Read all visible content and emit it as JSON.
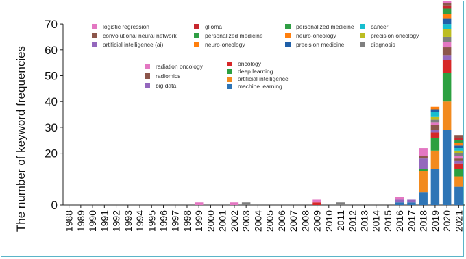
{
  "chart_data": {
    "type": "bar",
    "stacked": true,
    "title": "",
    "xlabel": "",
    "ylabel": "The number of keyword frequencies",
    "y_ticks": [
      0,
      20,
      30,
      40,
      50,
      60,
      70
    ],
    "categories": [
      "1988",
      "1989",
      "1990",
      "1991",
      "1992",
      "1993",
      "1994",
      "1995",
      "1996",
      "1997",
      "1998",
      "1999",
      "2000",
      "2001",
      "2002",
      "2003",
      "2004",
      "2005",
      "2006",
      "2007",
      "2008",
      "2009",
      "2010",
      "2011",
      "2012",
      "2013",
      "2014",
      "2015",
      "2016",
      "2017",
      "2018",
      "2019",
      "2020",
      "2021"
    ],
    "legend_groups": [
      [
        "logistic regression",
        "convolutional neural network",
        "artificial intelligence (ai)"
      ],
      [
        "glioma",
        "personalized medicine",
        "neuro-oncology"
      ],
      [
        "personalized medicine",
        "neuro-oncology",
        "precision medicine"
      ],
      [
        "cancer",
        "precision oncology",
        "diagnosis"
      ],
      [
        "radiation oncology",
        "radiomics",
        "big data"
      ],
      [
        "oncology",
        "deep learning",
        "artificial intelligence",
        "machine learning"
      ]
    ],
    "series": [
      {
        "name": "machine learning",
        "color": "#2e75b6",
        "values": [
          0,
          0,
          0,
          0,
          0,
          0,
          0,
          0,
          0,
          0,
          0,
          0,
          0,
          0,
          0,
          0,
          0,
          0,
          0,
          0,
          0,
          0,
          0,
          0,
          0,
          0,
          0,
          0,
          1,
          1,
          5,
          14,
          29,
          7
        ]
      },
      {
        "name": "artificial intelligence",
        "color": "#f28a1e",
        "values": [
          0,
          0,
          0,
          0,
          0,
          0,
          0,
          0,
          0,
          0,
          0,
          0,
          0,
          0,
          0,
          0,
          0,
          0,
          0,
          0,
          0,
          0,
          0,
          0,
          0,
          0,
          0,
          0,
          0,
          0,
          8,
          7,
          11,
          4
        ]
      },
      {
        "name": "deep learning",
        "color": "#2ca040",
        "values": [
          0,
          0,
          0,
          0,
          0,
          0,
          0,
          0,
          0,
          0,
          0,
          0,
          0,
          0,
          0,
          0,
          0,
          0,
          0,
          0,
          0,
          0,
          0,
          0,
          0,
          0,
          0,
          0,
          0,
          0,
          1,
          5,
          11,
          3
        ]
      },
      {
        "name": "oncology",
        "color": "#d62728",
        "values": [
          0,
          0,
          0,
          0,
          0,
          0,
          0,
          0,
          0,
          0,
          0,
          0,
          0,
          0,
          0,
          0,
          0,
          0,
          0,
          0,
          0,
          1,
          0,
          0,
          0,
          0,
          0,
          0,
          0,
          0,
          0,
          2,
          5,
          2
        ]
      },
      {
        "name": "big data",
        "color": "#9467bd",
        "values": [
          0,
          0,
          0,
          0,
          0,
          0,
          0,
          0,
          0,
          0,
          0,
          0,
          0,
          0,
          0,
          0,
          0,
          0,
          0,
          0,
          0,
          0,
          0,
          0,
          0,
          0,
          0,
          0,
          1,
          1,
          4,
          1,
          2,
          1
        ]
      },
      {
        "name": "radiomics",
        "color": "#8c564b",
        "values": [
          0,
          0,
          0,
          0,
          0,
          0,
          0,
          0,
          0,
          0,
          0,
          0,
          0,
          0,
          0,
          0,
          0,
          0,
          0,
          0,
          0,
          0,
          0,
          0,
          0,
          0,
          0,
          0,
          0,
          0,
          1,
          2,
          3,
          1
        ]
      },
      {
        "name": "radiation oncology",
        "color": "#e377c2",
        "values": [
          0,
          0,
          0,
          0,
          0,
          0,
          0,
          0,
          0,
          0,
          0,
          1,
          0,
          0,
          1,
          0,
          0,
          0,
          0,
          0,
          0,
          1,
          0,
          0,
          0,
          0,
          0,
          0,
          1,
          0,
          3,
          1,
          2,
          1
        ]
      },
      {
        "name": "diagnosis",
        "color": "#7f7f7f",
        "values": [
          0,
          0,
          0,
          0,
          0,
          0,
          0,
          0,
          0,
          0,
          0,
          0,
          0,
          0,
          0,
          1,
          0,
          0,
          0,
          0,
          0,
          0,
          0,
          1,
          0,
          0,
          0,
          0,
          0,
          0,
          0,
          1,
          2,
          1
        ]
      },
      {
        "name": "precision oncology",
        "color": "#bcbd22",
        "values": [
          0,
          0,
          0,
          0,
          0,
          0,
          0,
          0,
          0,
          0,
          0,
          0,
          0,
          0,
          0,
          0,
          0,
          0,
          0,
          0,
          0,
          0,
          0,
          0,
          0,
          0,
          0,
          0,
          0,
          0,
          0,
          1,
          3,
          1
        ]
      },
      {
        "name": "cancer",
        "color": "#17becf",
        "values": [
          0,
          0,
          0,
          0,
          0,
          0,
          0,
          0,
          0,
          0,
          0,
          0,
          0,
          0,
          0,
          0,
          0,
          0,
          0,
          0,
          0,
          0,
          0,
          0,
          0,
          0,
          0,
          0,
          0,
          0,
          0,
          2,
          2,
          1
        ]
      },
      {
        "name": "precision medicine",
        "color": "#1f5fa8",
        "values": [
          0,
          0,
          0,
          0,
          0,
          0,
          0,
          0,
          0,
          0,
          0,
          0,
          0,
          0,
          0,
          0,
          0,
          0,
          0,
          0,
          0,
          0,
          0,
          0,
          0,
          0,
          0,
          0,
          0,
          0,
          0,
          1,
          2,
          1
        ]
      },
      {
        "name": "neuro-oncology",
        "color": "#ff7f0e",
        "values": [
          0,
          0,
          0,
          0,
          0,
          0,
          0,
          0,
          0,
          0,
          0,
          0,
          0,
          0,
          0,
          0,
          0,
          0,
          0,
          0,
          0,
          0,
          0,
          0,
          0,
          0,
          0,
          0,
          0,
          0,
          0,
          1,
          2,
          1
        ]
      },
      {
        "name": "personalized medicine",
        "color": "#2f9e44",
        "values": [
          0,
          0,
          0,
          0,
          0,
          0,
          0,
          0,
          0,
          0,
          0,
          0,
          0,
          0,
          0,
          0,
          0,
          0,
          0,
          0,
          0,
          0,
          0,
          0,
          0,
          0,
          0,
          0,
          0,
          0,
          0,
          0,
          2,
          1
        ]
      },
      {
        "name": "glioma",
        "color": "#c7282e",
        "values": [
          0,
          0,
          0,
          0,
          0,
          0,
          0,
          0,
          0,
          0,
          0,
          0,
          0,
          0,
          0,
          0,
          0,
          0,
          0,
          0,
          0,
          0,
          0,
          0,
          0,
          0,
          0,
          0,
          0,
          0,
          0,
          0,
          1,
          1
        ]
      },
      {
        "name": "convolutional neural network",
        "color": "#8c564b",
        "values": [
          0,
          0,
          0,
          0,
          0,
          0,
          0,
          0,
          0,
          0,
          0,
          0,
          0,
          0,
          0,
          0,
          0,
          0,
          0,
          0,
          0,
          0,
          0,
          0,
          0,
          0,
          0,
          0,
          0,
          0,
          0,
          0,
          1,
          1
        ]
      },
      {
        "name": "logistic regression",
        "color": "#e377c2",
        "values": [
          0,
          0,
          0,
          0,
          0,
          0,
          0,
          0,
          0,
          0,
          0,
          0,
          0,
          0,
          0,
          0,
          0,
          0,
          0,
          0,
          0,
          0,
          0,
          0,
          0,
          0,
          0,
          0,
          0,
          0,
          0,
          0,
          1,
          0
        ]
      }
    ],
    "legend_colors": {
      "logistic regression": "#e377c2",
      "convolutional neural network": "#8c564b",
      "artificial intelligence (ai)": "#9467bd",
      "glioma": "#c7282e",
      "personalized medicine": "#2f9e44",
      "neuro-oncology": "#ff7f0e",
      "precision medicine": "#1f5fa8",
      "cancer": "#17becf",
      "precision oncology": "#bcbd22",
      "diagnosis": "#7f7f7f",
      "radiation oncology": "#e377c2",
      "radiomics": "#8c564b",
      "big data": "#9467bd",
      "oncology": "#d62728",
      "deep learning": "#2ca040",
      "artificial intelligence": "#f28a1e",
      "machine learning": "#2e75b6"
    }
  }
}
